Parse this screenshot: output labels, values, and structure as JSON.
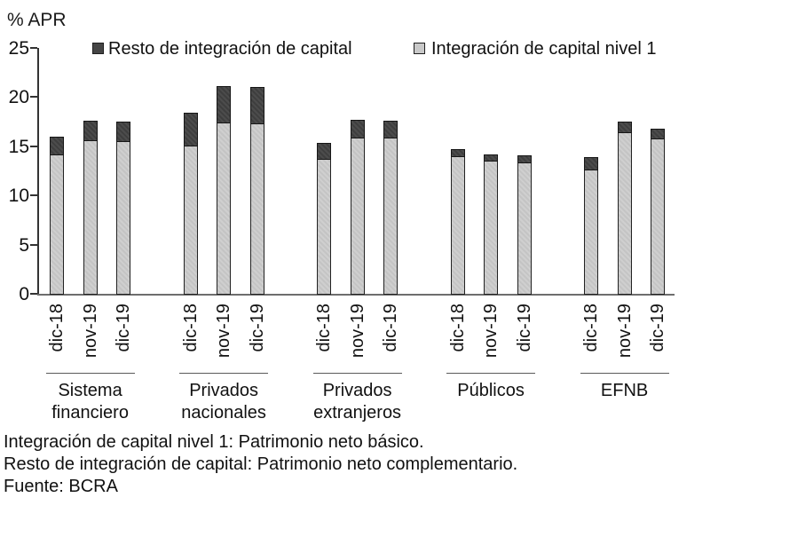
{
  "header": {
    "unit_label": "% APR"
  },
  "legend": {
    "items": [
      {
        "label": "Resto de integración de capital",
        "color": "#454545",
        "swatch": "dark-square-icon"
      },
      {
        "label": "Integración de capital nivel 1",
        "color": "#c9c9c9",
        "swatch": "light-square-icon"
      }
    ]
  },
  "footnotes": {
    "line1": "Integración de capital nivel 1: Patrimonio neto básico.",
    "line2": "Resto de integración de capital: Patrimonio neto complementario.",
    "line3": "Fuente: BCRA"
  },
  "chart_data": {
    "type": "bar",
    "stacked": true,
    "title": "",
    "ylabel": "% APR",
    "ylim": [
      0,
      25
    ],
    "yticks": [
      0,
      5,
      10,
      15,
      20,
      25
    ],
    "grid": false,
    "legend_position": "top",
    "bar_periods": [
      "dic-18",
      "nov-19",
      "dic-19"
    ],
    "series_names": [
      "Integración de capital nivel 1",
      "Resto de integración de capital"
    ],
    "colors": {
      "nivel1": "#c9c9c9",
      "resto": "#454545"
    },
    "groups": [
      {
        "label": "Sistema financiero",
        "label_lines": [
          "Sistema",
          "financiero"
        ],
        "nivel1": [
          14.2,
          15.6,
          15.5
        ],
        "resto": [
          1.8,
          2.0,
          2.0
        ],
        "totals": [
          16.0,
          17.6,
          17.5
        ]
      },
      {
        "label": "Privados nacionales",
        "label_lines": [
          "Privados",
          "nacionales"
        ],
        "nivel1": [
          15.1,
          17.4,
          17.3
        ],
        "resto": [
          3.3,
          3.7,
          3.7
        ],
        "totals": [
          18.4,
          21.1,
          21.0
        ]
      },
      {
        "label": "Privados extranjeros",
        "label_lines": [
          "Privados",
          "extranjeros"
        ],
        "nivel1": [
          13.7,
          15.9,
          15.9
        ],
        "resto": [
          1.6,
          1.8,
          1.7
        ],
        "totals": [
          15.3,
          17.7,
          17.6
        ]
      },
      {
        "label": "Públicos",
        "label_lines": [
          "Públicos"
        ],
        "nivel1": [
          14.0,
          13.5,
          13.4
        ],
        "resto": [
          0.7,
          0.7,
          0.7
        ],
        "totals": [
          14.7,
          14.2,
          14.1
        ]
      },
      {
        "label": "EFNB",
        "label_lines": [
          "EFNB"
        ],
        "nivel1": [
          12.6,
          16.4,
          15.8
        ],
        "resto": [
          1.3,
          1.1,
          1.0
        ],
        "totals": [
          13.9,
          17.5,
          16.8
        ]
      }
    ]
  }
}
